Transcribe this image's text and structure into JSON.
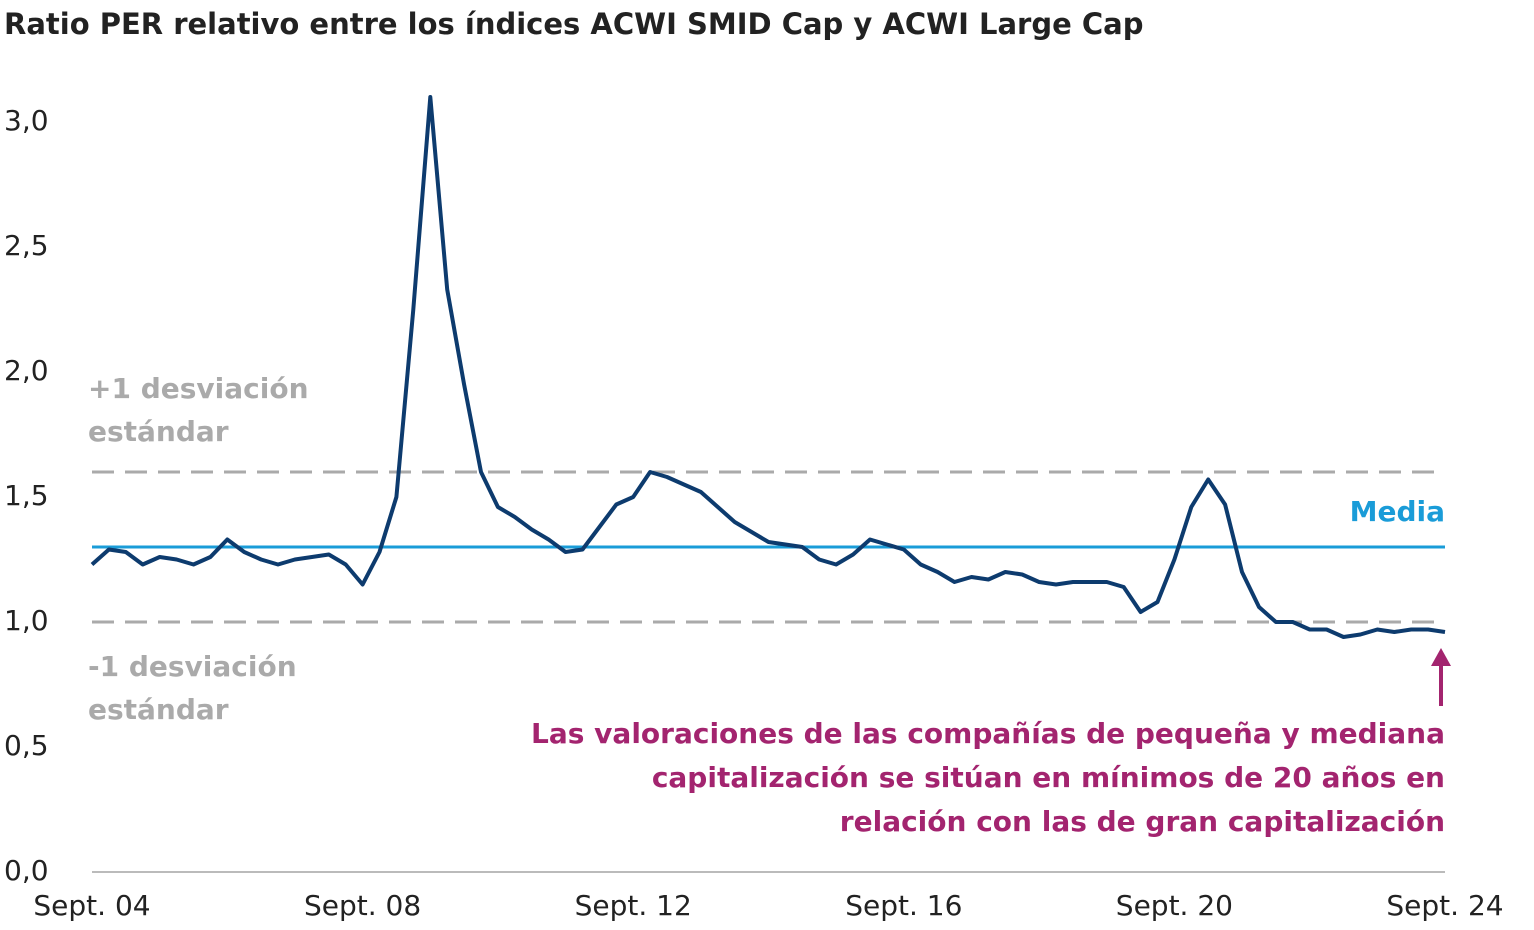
{
  "chart_data": {
    "type": "line",
    "title": "Ratio PER relativo entre los índices ACWI SMID Cap y ACWI Large Cap",
    "categories": [
      "Sept. 04",
      null,
      null,
      null,
      null,
      null,
      null,
      null,
      null,
      null,
      null,
      null,
      null,
      null,
      null,
      null,
      "Sept. 08",
      null,
      null,
      null,
      null,
      null,
      null,
      null,
      null,
      null,
      null,
      null,
      null,
      null,
      null,
      null,
      "Sept. 12",
      null,
      null,
      null,
      null,
      null,
      null,
      null,
      null,
      null,
      null,
      null,
      null,
      null,
      null,
      null,
      "Sept. 16",
      null,
      null,
      null,
      null,
      null,
      null,
      null,
      null,
      null,
      null,
      null,
      null,
      null,
      null,
      null,
      "Sept. 20",
      null,
      null,
      null,
      null,
      null,
      null,
      null,
      null,
      null,
      null,
      null,
      null,
      null,
      null,
      null,
      "Sept. 24"
    ],
    "series": [
      {
        "name": "Ratio PER relativo",
        "color": "#0d3b6e",
        "values": [
          1.23,
          1.29,
          1.28,
          1.23,
          1.26,
          1.25,
          1.23,
          1.26,
          1.33,
          1.28,
          1.25,
          1.23,
          1.25,
          1.26,
          1.27,
          1.23,
          1.15,
          1.28,
          1.5,
          2.25,
          3.1,
          2.33,
          1.95,
          1.6,
          1.46,
          1.42,
          1.37,
          1.33,
          1.28,
          1.29,
          1.38,
          1.47,
          1.5,
          1.6,
          1.58,
          1.55,
          1.52,
          1.46,
          1.4,
          1.36,
          1.32,
          1.31,
          1.3,
          1.25,
          1.23,
          1.27,
          1.33,
          1.31,
          1.29,
          1.23,
          1.2,
          1.16,
          1.18,
          1.17,
          1.2,
          1.19,
          1.16,
          1.15,
          1.16,
          1.16,
          1.16,
          1.14,
          1.04,
          1.08,
          1.25,
          1.46,
          1.57,
          1.47,
          1.2,
          1.06,
          1.0,
          1.0,
          0.97,
          0.97,
          0.94,
          0.95,
          0.97,
          0.96,
          0.97,
          0.97,
          0.96
        ]
      }
    ],
    "ylim": [
      0,
      3.1
    ],
    "yticks": [
      {
        "value": 0,
        "label": "0,0"
      },
      {
        "value": 0.5,
        "label": "0,5"
      },
      {
        "value": 1.0,
        "label": "1,0"
      },
      {
        "value": 1.5,
        "label": "1,5"
      },
      {
        "value": 2.0,
        "label": "2,0"
      },
      {
        "value": 2.5,
        "label": "2,5"
      },
      {
        "value": 3.0,
        "label": "3,0"
      }
    ],
    "reference_lines": [
      {
        "value": 1.6,
        "label": [
          "+1 desviación",
          "estándar"
        ],
        "color": "#aaaaaa",
        "style": "dashed"
      },
      {
        "value": 1.3,
        "label": [
          "Media"
        ],
        "color": "#1a9cd8",
        "style": "solid"
      },
      {
        "value": 1.0,
        "label": [
          "-1 desviación",
          "estándar"
        ],
        "color": "#aaaaaa",
        "style": "dashed"
      }
    ],
    "annotation": {
      "lines": [
        "Las valoraciones de las compañías de pequeña y mediana",
        "capitalización se sitúan en mínimos de 20 años en",
        "relación con las de gran capitalización"
      ],
      "color": "#a3246f"
    }
  }
}
